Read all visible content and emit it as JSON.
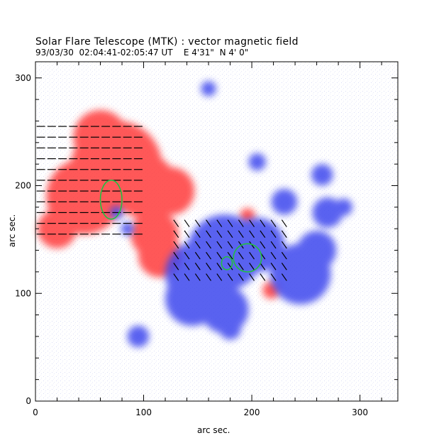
{
  "figure": {
    "title": "Solar Flare Telescope (MTK) : vector magnetic field",
    "subtitle": "93/03/30  02:04:41-02:05:47 UT    E 4'31\"  N 4' 0\"",
    "xlabel": "arc sec.",
    "ylabel": "arc sec."
  },
  "axes": {
    "x_ticks": [
      0,
      100,
      200,
      300
    ],
    "y_ticks": [
      0,
      100,
      200,
      300
    ],
    "xlim": [
      0,
      335
    ],
    "ylim": [
      0,
      315
    ]
  },
  "colors": {
    "positive_polarity": "#ff3b3b",
    "negative_polarity": "#3c46ee",
    "contour": "#22c040",
    "vectors": "#000000"
  },
  "regions": {
    "positive": [
      {
        "x": 75,
        "y": 218,
        "r": 42
      },
      {
        "x": 45,
        "y": 190,
        "r": 35
      },
      {
        "x": 100,
        "y": 200,
        "r": 30
      },
      {
        "x": 125,
        "y": 195,
        "r": 22
      },
      {
        "x": 60,
        "y": 245,
        "r": 25
      },
      {
        "x": 110,
        "y": 155,
        "r": 22
      },
      {
        "x": 115,
        "y": 135,
        "r": 20
      },
      {
        "x": 20,
        "y": 160,
        "r": 18
      },
      {
        "x": 218,
        "y": 103,
        "r": 8
      },
      {
        "x": 196,
        "y": 172,
        "r": 7
      }
    ],
    "negative": [
      {
        "x": 175,
        "y": 138,
        "r": 35
      },
      {
        "x": 205,
        "y": 145,
        "r": 25
      },
      {
        "x": 150,
        "y": 118,
        "r": 30
      },
      {
        "x": 145,
        "y": 95,
        "r": 25
      },
      {
        "x": 175,
        "y": 85,
        "r": 22
      },
      {
        "x": 245,
        "y": 118,
        "r": 28
      },
      {
        "x": 260,
        "y": 140,
        "r": 18
      },
      {
        "x": 270,
        "y": 175,
        "r": 14
      },
      {
        "x": 230,
        "y": 185,
        "r": 12
      },
      {
        "x": 265,
        "y": 210,
        "r": 10
      },
      {
        "x": 95,
        "y": 60,
        "r": 10
      },
      {
        "x": 180,
        "y": 67,
        "r": 10
      },
      {
        "x": 285,
        "y": 180,
        "r": 8
      },
      {
        "x": 205,
        "y": 222,
        "r": 8
      },
      {
        "x": 160,
        "y": 290,
        "r": 7
      },
      {
        "x": 75,
        "y": 175,
        "r": 6
      },
      {
        "x": 85,
        "y": 160,
        "r": 6
      }
    ]
  },
  "contours": [
    {
      "cx": 70,
      "cy": 187,
      "rx": 10,
      "ry": 18
    },
    {
      "cx": 196,
      "cy": 133,
      "rx": 13,
      "ry": 13
    },
    {
      "cx": 177,
      "cy": 128,
      "rx": 5,
      "ry": 6
    }
  ],
  "vector_fields": [
    {
      "x0": 5,
      "x1": 95,
      "y0": 155,
      "y1": 255,
      "step": 10,
      "angle": 0
    },
    {
      "x0": 130,
      "x1": 230,
      "y0": 115,
      "y1": 165,
      "step": 10,
      "angle": -55
    }
  ]
}
